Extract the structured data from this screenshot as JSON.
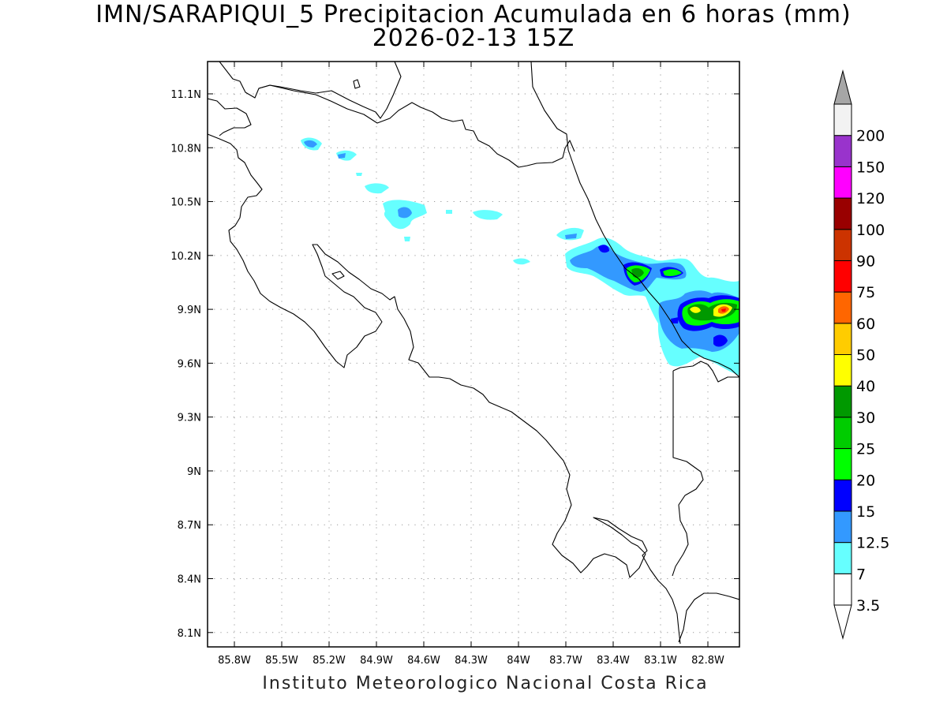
{
  "title": {
    "line1": "IMN/SARAPIQUI_5 Precipitacion Acumulada en 6 horas (mm)",
    "line2": "2026-02-13 15Z"
  },
  "credit": "Instituto Meteorologico Nacional Costa Rica",
  "axes": {
    "lon_labels": [
      "85.8W",
      "85.5W",
      "85.2W",
      "84.9W",
      "84.6W",
      "84.3W",
      "84W",
      "83.7W",
      "83.4W",
      "83.1W",
      "82.8W"
    ],
    "lat_labels": [
      "11.1N",
      "10.8N",
      "10.5N",
      "10.2N",
      "9.9N",
      "9.6N",
      "9.3N",
      "9N",
      "8.7N",
      "8.4N",
      "8.1N"
    ],
    "lon_range": [
      85.97,
      82.6
    ],
    "lat_range": [
      8.02,
      11.28
    ],
    "grid": "dotted"
  },
  "colorbar": {
    "labels": [
      "3.5",
      "7",
      "12.5",
      "15",
      "20",
      "25",
      "30",
      "40",
      "50",
      "60",
      "75",
      "90",
      "100",
      "120",
      "150",
      "200"
    ],
    "colors": [
      "#ffffff",
      "#66ffff",
      "#3399ff",
      "#0000ff",
      "#00ff00",
      "#00cc00",
      "#009900",
      "#ffff00",
      "#ffcc00",
      "#ff6600",
      "#ff0000",
      "#cc3300",
      "#990000",
      "#ff00ff",
      "#9933cc",
      "#f2f2f2"
    ],
    "upper_arrow_color": "#a6a6a6",
    "lower_arrow_color": "#ffffff"
  },
  "colors": {
    "coast": "#000000",
    "grid": "#999999"
  }
}
